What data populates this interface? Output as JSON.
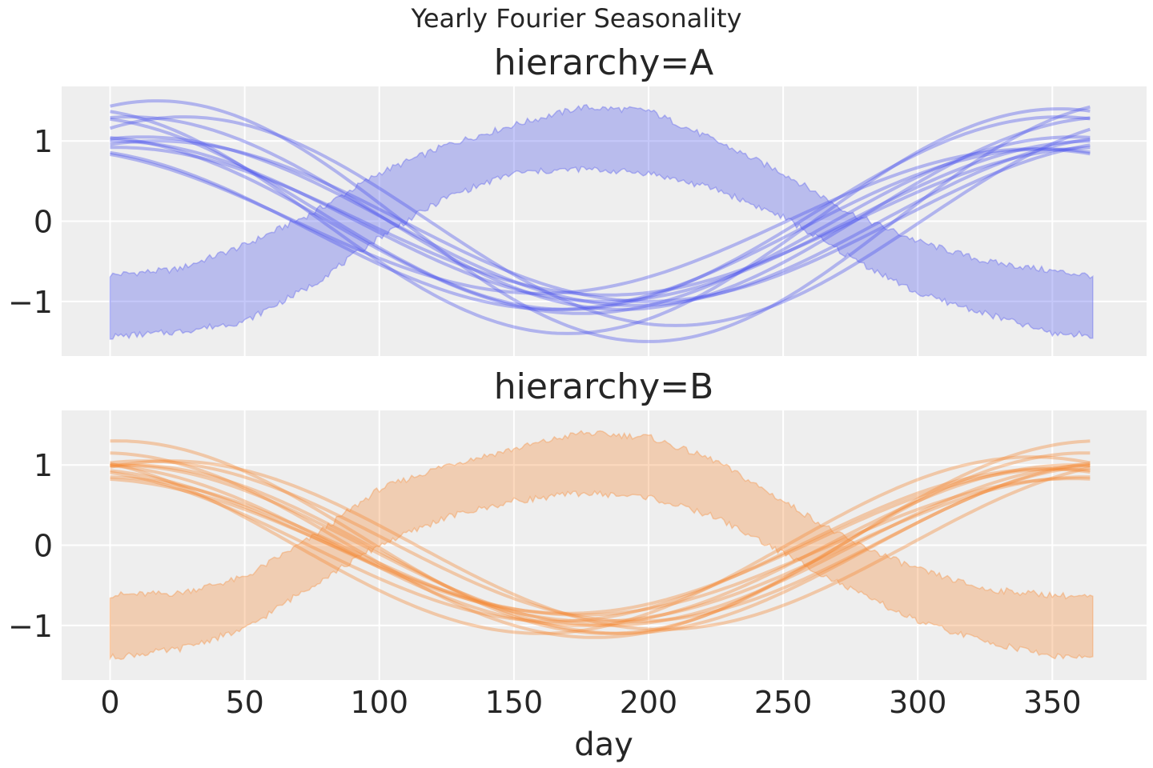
{
  "chart_data": {
    "type": "line",
    "title": "Yearly Fourier Seasonality",
    "xlabel": "day",
    "xlim": [
      -18,
      385
    ],
    "ylim": [
      -1.68,
      1.68
    ],
    "xticks": [
      0,
      50,
      100,
      150,
      200,
      250,
      300,
      350
    ],
    "yticks": [
      -1,
      0,
      1
    ],
    "ytick_labels": [
      "−1",
      "0",
      "1"
    ],
    "grid": true,
    "sharex": true,
    "panels": [
      {
        "title": "hierarchy=A",
        "color": "#4c53ed",
        "band": {
          "x": [
            0,
            25,
            50,
            75,
            100,
            125,
            150,
            175,
            200,
            225,
            250,
            275,
            300,
            325,
            350,
            365
          ],
          "lower": [
            -1.44,
            -1.38,
            -1.25,
            -0.8,
            -0.2,
            0.3,
            0.6,
            0.65,
            0.6,
            0.4,
            0.05,
            -0.45,
            -0.9,
            -1.15,
            -1.4,
            -1.42
          ],
          "upper": [
            -0.67,
            -0.6,
            -0.3,
            0.1,
            0.6,
            0.95,
            1.2,
            1.42,
            1.38,
            1.0,
            0.6,
            0.1,
            -0.25,
            -0.5,
            -0.62,
            -0.68
          ]
        },
        "lines": [
          {
            "amp": 1.0,
            "peak": 183,
            "offset": 0.0
          },
          {
            "amp": 1.0,
            "peak": 200,
            "offset": 0.0
          },
          {
            "amp": 1.1,
            "peak": 175,
            "offset": -0.05
          },
          {
            "amp": 1.05,
            "peak": 195,
            "offset": 0.0
          },
          {
            "amp": 1.2,
            "peak": 170,
            "offset": 0.1
          },
          {
            "amp": 1.0,
            "peak": 165,
            "offset": -0.1
          },
          {
            "amp": 1.2,
            "peak": 190,
            "offset": 0.1
          },
          {
            "amp": 0.92,
            "peak": 185,
            "offset": 0.0
          },
          {
            "amp": 1.5,
            "peak": 200,
            "offset": 0.0
          },
          {
            "amp": 1.4,
            "peak": 170,
            "offset": 0.0
          },
          {
            "amp": 0.9,
            "peak": 160,
            "offset": 0.0
          },
          {
            "amp": 1.3,
            "peak": 210,
            "offset": 0.0
          }
        ]
      },
      {
        "title": "hierarchy=B",
        "color": "#f58a35",
        "band": {
          "x": [
            0,
            25,
            50,
            75,
            100,
            125,
            150,
            175,
            200,
            225,
            250,
            275,
            300,
            325,
            350,
            365
          ],
          "lower": [
            -1.4,
            -1.3,
            -1.05,
            -0.5,
            0.0,
            0.35,
            0.55,
            0.65,
            0.6,
            0.35,
            -0.1,
            -0.55,
            -0.95,
            -1.2,
            -1.38,
            -1.4
          ],
          "upper": [
            -0.62,
            -0.6,
            -0.4,
            0.1,
            0.7,
            1.0,
            1.2,
            1.4,
            1.35,
            1.05,
            0.55,
            0.05,
            -0.3,
            -0.55,
            -0.62,
            -0.65
          ]
        },
        "lines": [
          {
            "amp": 1.0,
            "peak": 175,
            "offset": 0.0
          },
          {
            "amp": 1.0,
            "peak": 185,
            "offset": 0.0
          },
          {
            "amp": 0.9,
            "peak": 170,
            "offset": 0.05
          },
          {
            "amp": 1.05,
            "peak": 190,
            "offset": -0.05
          },
          {
            "amp": 1.15,
            "peak": 180,
            "offset": 0.0
          },
          {
            "amp": 0.85,
            "peak": 175,
            "offset": -0.02
          },
          {
            "amp": 1.2,
            "peak": 185,
            "offset": 0.1
          },
          {
            "amp": 0.95,
            "peak": 165,
            "offset": 0.0
          },
          {
            "amp": 1.0,
            "peak": 195,
            "offset": 0.05
          },
          {
            "amp": 0.9,
            "peak": 180,
            "offset": -0.05
          },
          {
            "amp": 1.1,
            "peak": 160,
            "offset": 0.0
          },
          {
            "amp": 1.05,
            "peak": 205,
            "offset": 0.0
          }
        ]
      }
    ]
  }
}
